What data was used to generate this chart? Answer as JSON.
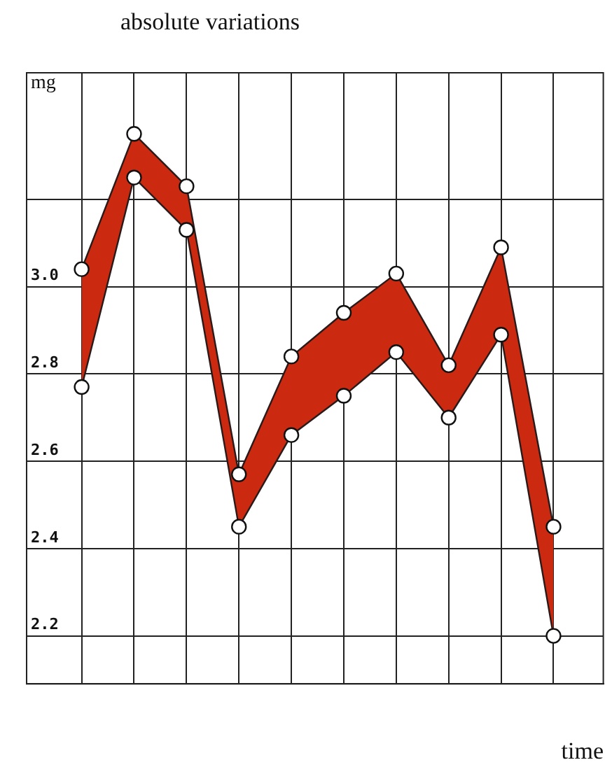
{
  "chart_data": {
    "type": "line",
    "title": "absolute variations",
    "xlabel": "time",
    "ylabel": "mg",
    "categories": [
      null,
      null,
      null,
      null,
      null,
      null,
      null,
      null,
      null,
      null
    ],
    "series": [
      {
        "type": "area",
        "color": "#cc2a10",
        "values": [
          3.04,
          3.35,
          3.23,
          2.57,
          2.84,
          2.94,
          3.03,
          2.82,
          3.09,
          2.45
        ]
      },
      {
        "type": "line",
        "color": "#2a1a1a",
        "values": [
          2.77,
          3.25,
          3.13,
          2.45,
          2.66,
          2.75,
          2.85,
          2.7,
          2.89,
          2.2
        ]
      }
    ],
    "ylim": [
      2.09,
      3.49
    ],
    "yticks": [
      {
        "value": 2.2,
        "label": "2.2"
      },
      {
        "value": 2.4,
        "label": "2.4"
      },
      {
        "value": 2.6,
        "label": "2.6"
      },
      {
        "value": 2.8,
        "label": "2.8"
      },
      {
        "value": 3.0,
        "label": "3.0"
      },
      {
        "value": 3.2,
        "label": null
      }
    ],
    "grid": true,
    "legend": false,
    "marker": "circle",
    "line_style": "solid"
  }
}
